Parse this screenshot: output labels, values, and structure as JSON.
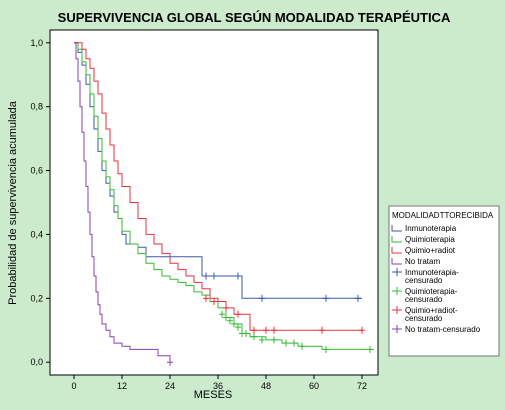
{
  "chart_data": {
    "type": "line",
    "step": true,
    "title": "SUPERVIVENCIA GLOBAL SEGÚN MODALIDAD TERAPÉUTICA",
    "xlabel": "MESES",
    "ylabel": "Probabilidad de supervivencia acumulada",
    "xlim": [
      -6,
      76
    ],
    "ylim": [
      -0.04,
      1.04
    ],
    "xticks": [
      0,
      12,
      24,
      36,
      48,
      60,
      72
    ],
    "yticks": [
      0.0,
      0.2,
      0.4,
      0.6,
      0.8,
      1.0
    ],
    "ytick_labels": [
      "0,0",
      "0,2",
      "0,4",
      "0,6",
      "0,8",
      "1,0"
    ],
    "plot_background": "#ffffff",
    "background": "#ccebcc",
    "legend": {
      "title": "MODALIDADTTORECIBIDA",
      "placement": "right",
      "entries": [
        {
          "label": "Inmunoterapia",
          "color": "#3b5aa8",
          "kind": "line"
        },
        {
          "label": "Quimioterapia",
          "color": "#33bb33",
          "kind": "line"
        },
        {
          "label": "Quimio+radiot",
          "color": "#e8323c",
          "kind": "line"
        },
        {
          "label": "No tratam",
          "color": "#8a3fb0",
          "kind": "line"
        },
        {
          "label": "Inmunoterapia-censurado",
          "color": "#3b5aa8",
          "kind": "censor"
        },
        {
          "label": "Quimioterapia-censurado",
          "color": "#33bb33",
          "kind": "censor"
        },
        {
          "label": "Quimio+radiot-censurado",
          "color": "#e8323c",
          "kind": "censor"
        },
        {
          "label": "No tratam-censurado",
          "color": "#8a3fb0",
          "kind": "censor"
        }
      ]
    },
    "series": [
      {
        "name": "Inmunoterapia",
        "color": "#3b5aa8",
        "x": [
          0,
          1,
          2,
          3,
          4,
          5,
          6,
          7,
          8,
          9,
          10,
          11,
          12,
          13,
          14,
          16,
          18,
          22,
          32,
          42,
          72
        ],
        "y": [
          1.0,
          0.97,
          0.93,
          0.87,
          0.8,
          0.73,
          0.66,
          0.6,
          0.56,
          0.52,
          0.47,
          0.45,
          0.4,
          0.37,
          0.37,
          0.36,
          0.33,
          0.33,
          0.27,
          0.2,
          0.2
        ],
        "censored": [
          {
            "x": 33,
            "y": 0.27
          },
          {
            "x": 35,
            "y": 0.27
          },
          {
            "x": 41,
            "y": 0.27
          },
          {
            "x": 47,
            "y": 0.2
          },
          {
            "x": 63,
            "y": 0.2
          },
          {
            "x": 71,
            "y": 0.2
          }
        ]
      },
      {
        "name": "Quimioterapia",
        "color": "#33bb33",
        "x": [
          0,
          1,
          2,
          3,
          4,
          5,
          6,
          7,
          8,
          9,
          10,
          11,
          12,
          14,
          16,
          18,
          20,
          22,
          24,
          26,
          28,
          30,
          32,
          34,
          36,
          38,
          40,
          42,
          44,
          48,
          52,
          56,
          62,
          75
        ],
        "y": [
          1.0,
          0.98,
          0.94,
          0.9,
          0.84,
          0.77,
          0.7,
          0.63,
          0.58,
          0.54,
          0.49,
          0.45,
          0.41,
          0.37,
          0.34,
          0.31,
          0.29,
          0.27,
          0.26,
          0.25,
          0.24,
          0.22,
          0.21,
          0.19,
          0.17,
          0.14,
          0.12,
          0.09,
          0.08,
          0.07,
          0.06,
          0.05,
          0.04,
          0.04
        ],
        "censored": [
          {
            "x": 37,
            "y": 0.15
          },
          {
            "x": 38,
            "y": 0.14
          },
          {
            "x": 39,
            "y": 0.13
          },
          {
            "x": 40,
            "y": 0.12
          },
          {
            "x": 41,
            "y": 0.11
          },
          {
            "x": 42,
            "y": 0.09
          },
          {
            "x": 43,
            "y": 0.09
          },
          {
            "x": 45,
            "y": 0.08
          },
          {
            "x": 47,
            "y": 0.07
          },
          {
            "x": 50,
            "y": 0.07
          },
          {
            "x": 53,
            "y": 0.06
          },
          {
            "x": 55,
            "y": 0.06
          },
          {
            "x": 57,
            "y": 0.05
          },
          {
            "x": 63,
            "y": 0.04
          },
          {
            "x": 74,
            "y": 0.04
          }
        ]
      },
      {
        "name": "Quimio+radiot",
        "color": "#e8323c",
        "x": [
          0,
          2,
          3,
          4,
          5,
          6,
          7,
          8,
          9,
          10,
          11,
          12,
          14,
          16,
          18,
          20,
          22,
          24,
          26,
          28,
          30,
          32,
          34,
          36,
          38,
          40,
          44,
          72
        ],
        "y": [
          1.0,
          0.98,
          0.95,
          0.92,
          0.88,
          0.84,
          0.78,
          0.73,
          0.68,
          0.63,
          0.59,
          0.55,
          0.5,
          0.45,
          0.4,
          0.37,
          0.34,
          0.31,
          0.29,
          0.27,
          0.25,
          0.23,
          0.2,
          0.19,
          0.17,
          0.15,
          0.1,
          0.1
        ],
        "censored": [
          {
            "x": 33,
            "y": 0.2
          },
          {
            "x": 35,
            "y": 0.19
          },
          {
            "x": 38,
            "y": 0.17
          },
          {
            "x": 41,
            "y": 0.15
          },
          {
            "x": 45,
            "y": 0.1
          },
          {
            "x": 48,
            "y": 0.1
          },
          {
            "x": 50,
            "y": 0.1
          },
          {
            "x": 62,
            "y": 0.1
          },
          {
            "x": 72,
            "y": 0.1
          }
        ]
      },
      {
        "name": "No tratam",
        "color": "#8a3fb0",
        "x": [
          0,
          0.5,
          1,
          1.5,
          2,
          2.5,
          3,
          3.5,
          4,
          4.5,
          5,
          5.5,
          6,
          6.5,
          7,
          8,
          9,
          10,
          12,
          14,
          18,
          21,
          24
        ],
        "y": [
          1.0,
          0.95,
          0.88,
          0.8,
          0.72,
          0.63,
          0.55,
          0.47,
          0.4,
          0.33,
          0.27,
          0.22,
          0.18,
          0.15,
          0.12,
          0.1,
          0.08,
          0.06,
          0.05,
          0.04,
          0.04,
          0.02,
          0.0
        ],
        "censored": [
          {
            "x": 24,
            "y": 0.0
          }
        ]
      }
    ]
  }
}
